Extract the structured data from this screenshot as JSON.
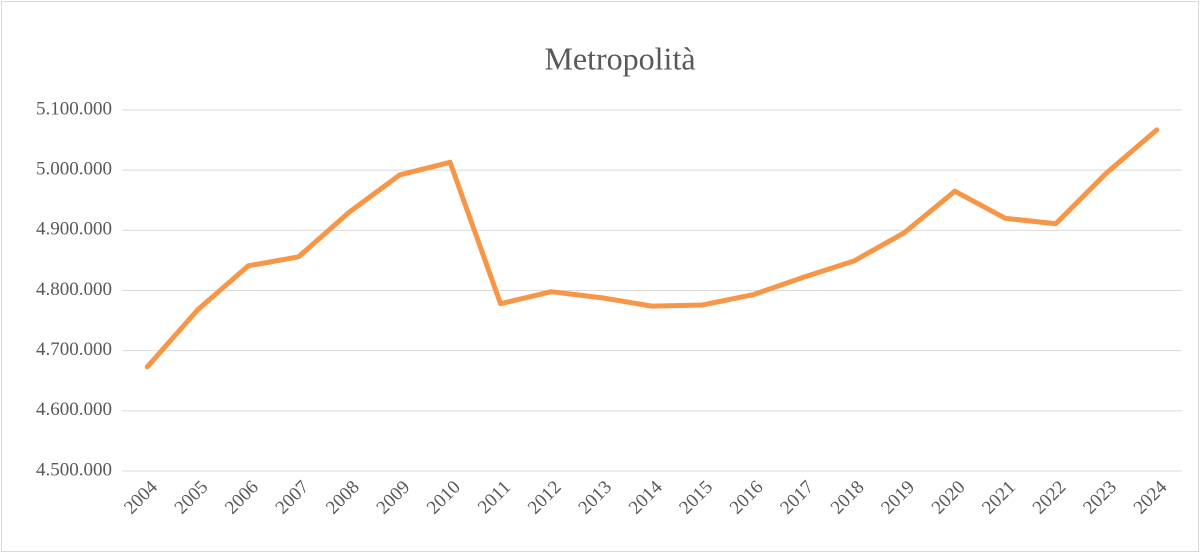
{
  "chart_data": {
    "type": "line",
    "title": "Metropolità",
    "categories": [
      "2004",
      "2005",
      "2006",
      "2007",
      "2008",
      "2009",
      "2010",
      "2011",
      "2012",
      "2013",
      "2014",
      "2015",
      "2016",
      "2017",
      "2018",
      "2019",
      "2020",
      "2021",
      "2022",
      "2023",
      "2024"
    ],
    "series": [
      {
        "name": "Metropolità",
        "color": "#f79646",
        "values": [
          4673000,
          4768000,
          4841000,
          4856000,
          4930000,
          4992000,
          5013000,
          4778000,
          4798000,
          4788000,
          4774000,
          4776000,
          4793000,
          4822000,
          4849000,
          4896000,
          4965000,
          4920000,
          4911000,
          4995000,
          5067000
        ]
      }
    ],
    "ylim": [
      4500000,
      5100000
    ],
    "yticks": [
      {
        "value": 4500000,
        "label": "4.500.000"
      },
      {
        "value": 4600000,
        "label": "4.600.000"
      },
      {
        "value": 4700000,
        "label": "4.700.000"
      },
      {
        "value": 4800000,
        "label": "4.800.000"
      },
      {
        "value": 4900000,
        "label": "4.900.000"
      },
      {
        "value": 5000000,
        "label": "5.000.000"
      },
      {
        "value": 5100000,
        "label": "5.100.000"
      }
    ],
    "grid": true
  }
}
